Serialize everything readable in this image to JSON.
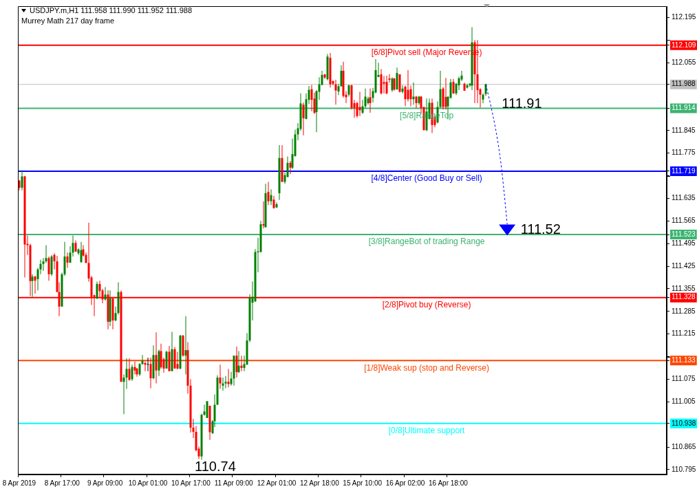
{
  "chart_data": {
    "type": "candlestick",
    "title": "USDJPY.m,H1  111.958 111.990 111.952 111.988",
    "subtitle": "Murrey Math 217 day frame",
    "categories": [
      "8 Apr 2019",
      null,
      null,
      null,
      null,
      null,
      null,
      null,
      null,
      null,
      null,
      null,
      null,
      null,
      null,
      null,
      "8 Apr 17:00",
      null,
      null,
      null,
      null,
      null,
      null,
      null,
      null,
      null,
      null,
      null,
      null,
      null,
      null,
      null,
      "9 Apr 09:00",
      null,
      null,
      null,
      null,
      null,
      null,
      null,
      null,
      null,
      null,
      null,
      null,
      null,
      null,
      null,
      "10 Apr 01:00",
      null,
      null,
      null,
      null,
      null,
      null,
      null,
      null,
      null,
      null,
      null,
      null,
      null,
      null,
      null,
      "10 Apr 17:00",
      null,
      null,
      null,
      null,
      null,
      null,
      null,
      null,
      null,
      null,
      null,
      null,
      null,
      null,
      null,
      "11 Apr 09:00",
      null,
      null,
      null,
      null,
      null,
      null,
      null,
      null,
      null,
      null,
      null,
      null,
      null,
      null,
      null,
      "12 Apr 01:00",
      null,
      null,
      null,
      null,
      null,
      null,
      null,
      null,
      null,
      null,
      null,
      null,
      null,
      null,
      null,
      "12 Apr 18:00",
      null,
      null,
      null,
      null,
      null,
      null,
      null,
      null,
      null,
      null,
      null,
      null,
      null,
      null,
      null,
      "15 Apr 10:00",
      null,
      null,
      null,
      null,
      null,
      null,
      null,
      null,
      null,
      null,
      null,
      null,
      null,
      null,
      null,
      "16 Apr 02:00",
      null,
      null,
      null,
      null,
      null,
      null,
      null,
      null,
      null,
      null,
      null,
      null,
      null,
      null,
      null,
      "16 Apr 18:00",
      null,
      null,
      null,
      null,
      null,
      null,
      null,
      null,
      null,
      null,
      null,
      null,
      null,
      null,
      null,
      null,
      null,
      null,
      null,
      null,
      null,
      null,
      null,
      null,
      null,
      null,
      null,
      null,
      null,
      null,
      null,
      null,
      null,
      null,
      null,
      null,
      null,
      null,
      null,
      null,
      null,
      null,
      null,
      null,
      null,
      null,
      null,
      null,
      null,
      null,
      null,
      null,
      null,
      null,
      null,
      null,
      null,
      null,
      null,
      null,
      null,
      null,
      null,
      null,
      null,
      null,
      null,
      null,
      null,
      null,
      null,
      null,
      null,
      null,
      null,
      null,
      null,
      null,
      null,
      null,
      null
    ],
    "ohlc": [
      [
        111.69,
        111.692,
        111.66,
        111.668
      ],
      [
        111.668,
        111.722,
        111.66,
        111.703
      ],
      [
        111.703,
        111.705,
        111.39,
        111.492
      ],
      [
        111.494,
        111.52,
        111.46,
        111.49
      ],
      [
        111.49,
        111.495,
        111.333,
        111.379
      ],
      [
        111.379,
        111.4,
        111.33,
        111.393
      ],
      [
        111.393,
        111.395,
        111.34,
        111.38
      ],
      [
        111.385,
        111.42,
        111.35,
        111.415
      ],
      [
        111.415,
        111.445,
        111.4,
        111.432
      ],
      [
        111.432,
        111.45,
        111.41,
        111.44
      ],
      [
        111.44,
        111.49,
        111.435,
        111.45
      ],
      [
        111.45,
        111.455,
        111.38,
        111.4
      ],
      [
        111.4,
        111.46,
        111.395,
        111.455
      ],
      [
        111.46,
        111.465,
        111.415,
        111.44
      ],
      [
        111.44,
        111.457,
        111.345,
        111.345
      ],
      [
        111.345,
        111.375,
        111.27,
        111.3
      ],
      [
        111.3,
        111.405,
        111.3,
        111.4
      ],
      [
        111.4,
        111.5,
        111.395,
        111.455
      ],
      [
        111.455,
        111.467,
        111.42,
        111.436
      ],
      [
        111.436,
        111.487,
        111.435,
        111.467
      ],
      [
        111.467,
        111.52,
        111.455,
        111.497
      ],
      [
        111.497,
        111.505,
        111.47,
        111.47
      ],
      [
        111.465,
        111.48,
        111.46,
        111.477
      ],
      [
        111.437,
        111.5,
        111.437,
        111.475
      ],
      [
        111.477,
        111.49,
        111.455,
        111.458
      ],
      [
        111.46,
        111.467,
        111.435,
        111.435
      ],
      [
        111.435,
        111.56,
        111.377,
        111.387
      ],
      [
        111.39,
        111.395,
        111.305,
        111.33
      ],
      [
        111.335,
        111.337,
        111.27,
        111.33
      ],
      [
        111.325,
        111.377,
        111.323,
        111.37
      ],
      [
        111.37,
        111.38,
        111.33,
        111.348
      ],
      [
        111.35,
        111.355,
        111.31,
        111.322
      ],
      [
        111.322,
        111.36,
        111.318,
        111.337
      ],
      [
        111.337,
        111.35,
        111.23,
        111.253
      ],
      [
        111.253,
        111.35,
        111.24,
        111.325
      ],
      [
        111.325,
        111.325,
        111.23,
        111.257
      ],
      [
        111.257,
        111.3,
        111.255,
        111.28
      ],
      [
        111.28,
        111.375,
        111.275,
        111.345
      ],
      [
        111.345,
        111.35,
        111.067,
        111.067
      ],
      [
        111.067,
        111.09,
        110.967,
        111.08
      ],
      [
        111.08,
        111.14,
        111.045,
        111.107
      ],
      [
        111.107,
        111.14,
        111.07,
        111.073
      ],
      [
        111.075,
        111.12,
        111.07,
        111.113
      ],
      [
        111.113,
        111.13,
        111.09,
        111.102
      ],
      [
        111.108,
        111.11,
        111.083,
        111.09
      ],
      [
        111.09,
        111.125,
        111.085,
        111.122
      ],
      [
        111.122,
        111.15,
        111.12,
        111.132
      ],
      [
        111.125,
        111.13,
        111.1,
        111.12
      ],
      [
        111.122,
        111.142,
        111.1,
        111.122
      ],
      [
        111.122,
        111.142,
        111.047,
        111.078
      ],
      [
        111.078,
        111.18,
        111.075,
        111.15
      ],
      [
        111.15,
        111.22,
        111.062,
        111.102
      ],
      [
        111.102,
        111.167,
        111.085,
        111.162
      ],
      [
        111.162,
        111.185,
        111.108,
        111.112
      ],
      [
        111.137,
        111.142,
        111.095,
        111.108
      ],
      [
        111.108,
        111.163,
        111.108,
        111.16
      ],
      [
        111.16,
        111.178,
        111.1,
        111.1
      ],
      [
        111.1,
        111.222,
        111.1,
        111.168
      ],
      [
        111.168,
        111.175,
        111.108,
        111.108
      ],
      [
        111.122,
        111.16,
        111.105,
        111.108
      ],
      [
        111.108,
        111.212,
        111.106,
        111.21
      ],
      [
        111.21,
        111.212,
        111.145,
        111.148
      ],
      [
        111.148,
        111.27,
        111.09,
        111.165
      ],
      [
        111.165,
        111.19,
        111.03,
        111.055
      ],
      [
        111.055,
        111.075,
        110.91,
        110.925
      ],
      [
        110.925,
        110.952,
        110.893,
        110.912
      ],
      [
        110.912,
        110.93,
        110.852,
        110.855
      ],
      [
        110.86,
        110.867,
        110.828,
        110.836
      ],
      [
        110.836,
        110.968,
        110.826,
        110.965
      ],
      [
        110.965,
        110.996,
        110.962,
        110.975
      ],
      [
        110.955,
        111.007,
        110.955,
        111.007
      ],
      [
        110.993,
        110.993,
        110.887,
        110.911
      ],
      [
        110.908,
        110.948,
        110.905,
        110.945
      ],
      [
        110.945,
        111.028,
        110.927,
        110.996
      ],
      [
        110.996,
        111.087,
        110.996,
        111.08
      ],
      [
        111.08,
        111.12,
        111.045,
        111.062
      ],
      [
        111.055,
        111.08,
        111.04,
        111.062
      ],
      [
        111.062,
        111.085,
        111.047,
        111.067
      ],
      [
        111.067,
        111.107,
        111.05,
        111.06
      ],
      [
        111.06,
        111.098,
        111.055,
        111.077
      ],
      [
        111.077,
        111.148,
        111.055,
        111.148
      ],
      [
        111.148,
        111.176,
        111.08,
        111.097
      ],
      [
        111.097,
        111.162,
        111.094,
        111.117
      ],
      [
        111.117,
        111.148,
        111.1,
        111.11
      ],
      [
        111.11,
        111.148,
        111.1,
        111.122
      ],
      [
        111.12,
        111.218,
        111.12,
        111.195
      ],
      [
        111.195,
        111.338,
        111.19,
        111.328
      ],
      [
        111.312,
        111.378,
        111.257,
        111.33
      ],
      [
        111.316,
        111.478,
        111.314,
        111.469
      ],
      [
        111.468,
        111.513,
        111.406,
        111.471
      ],
      [
        111.469,
        111.565,
        111.467,
        111.555
      ],
      [
        111.555,
        111.626,
        111.542,
        111.551
      ],
      [
        111.546,
        111.68,
        111.544,
        111.651
      ],
      [
        111.655,
        111.686,
        111.614,
        111.626
      ],
      [
        111.626,
        111.663,
        111.614,
        111.645
      ],
      [
        111.631,
        111.643,
        111.603,
        111.605
      ],
      [
        111.607,
        111.622,
        111.605,
        111.617
      ],
      [
        111.651,
        111.8,
        111.63,
        111.76
      ],
      [
        111.76,
        111.8,
        111.686,
        111.686
      ],
      [
        111.686,
        111.715,
        111.68,
        111.707
      ],
      [
        111.701,
        111.765,
        111.701,
        111.745
      ],
      [
        111.745,
        111.751,
        111.71,
        111.73
      ],
      [
        111.73,
        111.82,
        111.726,
        111.772
      ],
      [
        111.766,
        111.848,
        111.764,
        111.833
      ],
      [
        111.833,
        111.868,
        111.815,
        111.852
      ],
      [
        111.85,
        111.96,
        111.844,
        111.929
      ],
      [
        111.925,
        111.932,
        111.83,
        111.883
      ],
      [
        111.881,
        111.96,
        111.88,
        111.942
      ],
      [
        111.94,
        111.983,
        111.927,
        111.971
      ],
      [
        111.973,
        111.986,
        111.905,
        111.94
      ],
      [
        111.944,
        111.962,
        111.896,
        111.9
      ],
      [
        111.902,
        111.97,
        111.84,
        111.967
      ],
      [
        111.965,
        112.01,
        111.94,
        111.988
      ],
      [
        111.986,
        112.03,
        111.986,
        112.017
      ],
      [
        112.019,
        112.02,
        112.005,
        112.009
      ],
      [
        112.004,
        112.082,
        112.0,
        112.074
      ],
      [
        112.07,
        112.085,
        111.978,
        111.988
      ],
      [
        111.998,
        112.0,
        111.985,
        111.99
      ],
      [
        111.988,
        112.002,
        111.925,
        111.969
      ],
      [
        111.966,
        111.99,
        111.955,
        111.982
      ],
      [
        111.982,
        112.047,
        111.981,
        112.03
      ],
      [
        112.03,
        112.058,
        111.947,
        111.952
      ],
      [
        111.956,
        111.967,
        111.93,
        111.948
      ],
      [
        111.956,
        111.987,
        111.95,
        111.985
      ],
      [
        111.985,
        111.987,
        111.91,
        111.915
      ],
      [
        111.93,
        111.94,
        111.885,
        111.915
      ],
      [
        111.93,
        111.934,
        111.885,
        111.89
      ],
      [
        111.918,
        111.965,
        111.89,
        111.908
      ],
      [
        111.9,
        111.94,
        111.897,
        111.92
      ],
      [
        111.92,
        111.975,
        111.915,
        111.95
      ],
      [
        111.93,
        111.95,
        111.925,
        111.944
      ],
      [
        111.948,
        111.975,
        111.9,
        111.93
      ],
      [
        111.946,
        111.977,
        111.932,
        111.967
      ],
      [
        111.963,
        112.066,
        111.96,
        112.032
      ],
      [
        112.011,
        112.055,
        112.01,
        112.017
      ],
      [
        112.019,
        112.035,
        111.957,
        111.96
      ],
      [
        111.995,
        112.014,
        111.96,
        111.99
      ],
      [
        111.996,
        112.015,
        111.957,
        111.96
      ],
      [
        112.006,
        112.02,
        111.993,
        112.002
      ],
      [
        111.97,
        112.01,
        111.965,
        112.006
      ],
      [
        112.006,
        112.008,
        111.968,
        111.972
      ],
      [
        111.972,
        112.04,
        111.972,
        112.023
      ],
      [
        112.019,
        112.019,
        111.963,
        111.965
      ],
      [
        111.965,
        111.985,
        111.96,
        111.975
      ],
      [
        111.981,
        111.984,
        111.92,
        111.942
      ],
      [
        111.971,
        112.032,
        111.935,
        111.942
      ],
      [
        111.973,
        111.984,
        111.92,
        111.942
      ],
      [
        111.942,
        111.994,
        111.925,
        111.95
      ],
      [
        111.95,
        111.952,
        111.914,
        111.93
      ],
      [
        111.93,
        111.952,
        111.925,
        111.95
      ],
      [
        111.95,
        111.952,
        111.898,
        111.915
      ],
      [
        111.918,
        111.918,
        111.846,
        111.846
      ],
      [
        111.846,
        111.944,
        111.843,
        111.904
      ],
      [
        111.881,
        111.944,
        111.879,
        111.931
      ],
      [
        111.931,
        111.944,
        111.837,
        111.862
      ],
      [
        111.888,
        111.891,
        111.855,
        111.862
      ],
      [
        111.87,
        111.935,
        111.867,
        111.918
      ],
      [
        111.918,
        112.03,
        111.915,
        111.973
      ],
      [
        111.975,
        111.98,
        111.91,
        111.918
      ],
      [
        111.949,
        112.008,
        111.91,
        111.918
      ],
      [
        111.92,
        111.95,
        111.88,
        111.95
      ],
      [
        111.946,
        112.005,
        111.944,
        111.994
      ],
      [
        111.996,
        112.005,
        111.958,
        111.96
      ],
      [
        111.96,
        111.992,
        111.955,
        111.99
      ],
      [
        111.985,
        112.012,
        111.97,
        112.007
      ],
      [
        112.003,
        112.03,
        111.998,
        112.015
      ],
      [
        111.99,
        111.993,
        111.968,
        111.968
      ],
      [
        111.978,
        111.99,
        111.975,
        111.985
      ],
      [
        111.985,
        111.992,
        111.98,
        111.99
      ],
      [
        111.984,
        112.165,
        111.97,
        112.118
      ],
      [
        112.118,
        112.125,
        111.93,
        112.019
      ],
      [
        112.019,
        112.125,
        111.93,
        111.97
      ],
      [
        111.973,
        111.976,
        111.916,
        111.956
      ],
      [
        111.941,
        111.96,
        111.93,
        111.956
      ],
      [
        111.958,
        111.99,
        111.952,
        111.988
      ],
      null,
      null,
      null,
      null,
      null,
      null,
      null,
      null,
      null,
      null,
      null,
      null,
      null,
      null,
      null,
      null,
      null,
      null,
      null,
      null,
      null,
      null,
      null,
      null,
      null,
      null,
      null,
      null,
      null,
      null,
      null,
      null,
      null,
      null,
      null,
      null,
      null,
      null,
      null,
      null,
      null,
      null,
      null,
      null,
      null,
      null,
      null,
      null,
      null,
      null,
      null,
      null,
      null,
      null,
      null,
      null,
      null,
      null,
      null,
      null,
      null,
      null,
      null,
      null,
      null,
      null,
      null
    ],
    "colors": [
      "#ff0000",
      "#008000",
      "#ff0000",
      "#ff0000",
      "#ff0000",
      "#008000",
      "#ff0000",
      "#008000",
      "#008000",
      "#008000",
      "#008000",
      "#ff0000",
      "#008000",
      "#ff0000",
      "#ff0000",
      "#ff0000",
      "#008000",
      "#008000",
      "#ff0000",
      "#008000",
      "#008000",
      "#ff0000",
      "#008000",
      "#008000",
      "#ff0000",
      "#ff0000",
      "#ff0000",
      "#ff0000",
      "#ff0000",
      "#008000",
      "#ff0000",
      "#ff0000",
      "#008000",
      "#ff0000",
      "#008000",
      "#ff0000",
      "#008000",
      "#008000",
      "#ff0000",
      "#008000",
      "#008000",
      "#ff0000",
      "#008000",
      "#ff0000",
      "#ff0000",
      "#008000",
      "#008000",
      "#ff0000",
      "#000000",
      "#ff0000",
      "#008000",
      "#ff0000",
      "#008000",
      "#ff0000",
      "#ff0000",
      "#008000",
      "#ff0000",
      "#008000",
      "#ff0000",
      "#ff0000",
      "#008000",
      "#ff0000",
      "#008000",
      "#ff0000",
      "#ff0000",
      "#ff0000",
      "#ff0000",
      "#ff0000",
      "#008000",
      "#008000",
      "#008000",
      "#ff0000",
      "#008000",
      "#008000",
      "#008000",
      "#ff0000",
      "#008000",
      "#008000",
      "#ff0000",
      "#008000",
      "#008000",
      "#ff0000",
      "#008000",
      "#ff0000",
      "#008000",
      "#008000",
      "#008000",
      "#008000",
      "#008000",
      "#008000",
      "#008000",
      "#ff0000",
      "#008000",
      "#ff0000",
      "#008000",
      "#ff0000",
      "#008000",
      "#008000",
      "#ff0000",
      "#008000",
      "#008000",
      "#ff0000",
      "#008000",
      "#008000",
      "#008000",
      "#008000",
      "#ff0000",
      "#008000",
      "#008000",
      "#ff0000",
      "#ff0000",
      "#008000",
      "#008000",
      "#008000",
      "#ff0000",
      "#008000",
      "#ff0000",
      "#ff0000",
      "#ff0000",
      "#008000",
      "#008000",
      "#ff0000",
      "#ff0000",
      "#008000",
      "#ff0000",
      "#ff0000",
      "#ff0000",
      "#ff0000",
      "#008000",
      "#008000",
      "#008000",
      "#ff0000",
      "#008000",
      "#008000",
      "#008000",
      "#ff0000",
      "#ff0000",
      "#ff0000",
      "#ff0000",
      "#008000",
      "#ff0000",
      "#008000",
      "#ff0000",
      "#008000",
      "#ff0000",
      "#ff0000",
      "#ff0000",
      "#008000",
      "#ff0000",
      "#008000",
      "#ff0000",
      "#ff0000",
      "#008000",
      "#008000",
      "#ff0000",
      "#ff0000",
      "#008000",
      "#008000",
      "#ff0000",
      "#ff0000",
      "#008000",
      "#008000",
      "#ff0000",
      "#008000",
      "#008000",
      "#008000",
      "#ff0000",
      "#008000",
      "#008000",
      "#008000",
      "#ff0000",
      "#ff0000",
      "#ff0000",
      "#008000",
      "#008000",
      null,
      null,
      null,
      null,
      null,
      null,
      null,
      null,
      null,
      null,
      null,
      null,
      null,
      null,
      null,
      null,
      null,
      null,
      null,
      null,
      null,
      null,
      null,
      null,
      null,
      null,
      null,
      null,
      null,
      null,
      null,
      null,
      null,
      null,
      null,
      null,
      null,
      null,
      null,
      null,
      null,
      null,
      null,
      null,
      null,
      null,
      null,
      null,
      null,
      null,
      null,
      null,
      null,
      null,
      null,
      null,
      null,
      null,
      null,
      null,
      null,
      null,
      null,
      null,
      null,
      null,
      null
    ],
    "ylim": [
      110.78,
      112.23
    ],
    "yticks": [
      112.195,
      {
        "value": 112.125,
        "label": null
      },
      112.109,
      112.055,
      111.988,
      111.914,
      111.845,
      111.775,
      111.719,
      {
        "value": 111.705,
        "label": null
      },
      111.635,
      111.565,
      111.523,
      111.495,
      111.425,
      111.355,
      111.328,
      111.285,
      111.215,
      {
        "value": 111.145,
        "label": null
      },
      111.133,
      111.075,
      111.005,
      110.938,
      110.865,
      110.795
    ],
    "ref_lines": [
      {
        "axis": "y",
        "value": 112.109,
        "label": "[6/8]Pivot sell (Major Reverse)",
        "color": "#ff0000"
      },
      {
        "axis": "y",
        "value": 111.988,
        "color": "#c0c0c0"
      },
      {
        "axis": "y",
        "value": 111.914,
        "label": "[5/8]RangeTop",
        "color": "#3cb371"
      },
      {
        "axis": "y",
        "value": 111.719,
        "label": "[4/8]Center (Good Buy or Sell)",
        "color": "#0000ff"
      },
      {
        "axis": "y",
        "value": 111.523,
        "label": "[3/8]RangeBot of trading Range",
        "color": "#3cb371"
      },
      {
        "axis": "y",
        "value": 111.328,
        "label": "[2/8]Pivot buy (Reverse)",
        "color": "#ff0000"
      },
      {
        "axis": "y",
        "value": 111.133,
        "label": "[1/8]Weak sup (stop and Reverse)",
        "color": "#ff4500"
      },
      {
        "axis": "y",
        "value": 110.938,
        "label": "[0/8]Ultimate support",
        "color": "#00ffff"
      }
    ],
    "annotations": [
      "110.74",
      {
        "text": "111.91",
        "y": 111.91
      },
      {
        "text": "111.52",
        "y": 111.52
      }
    ],
    "grid": false,
    "legend": false
  }
}
